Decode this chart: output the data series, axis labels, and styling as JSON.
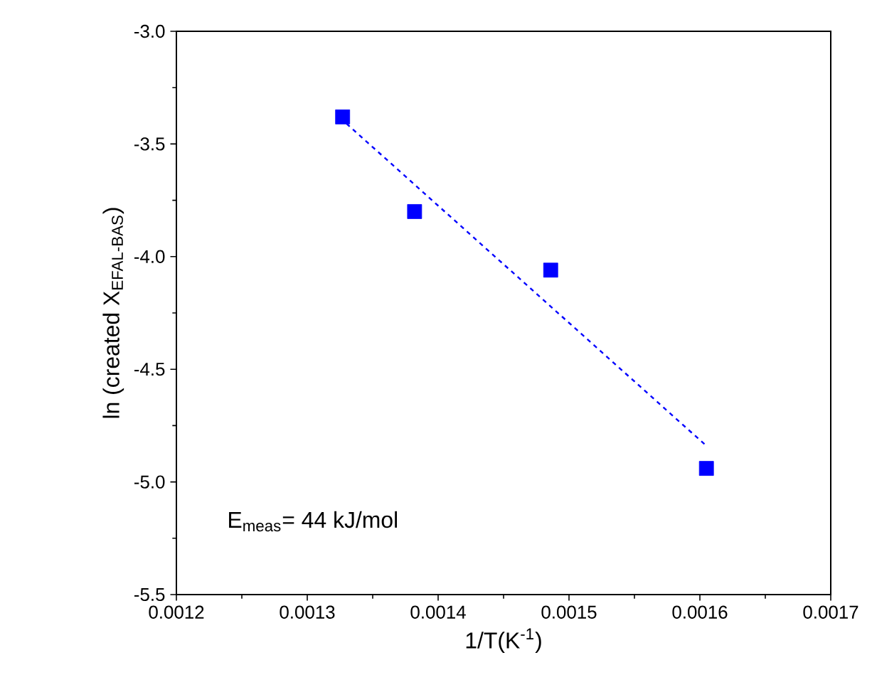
{
  "chart_data": {
    "type": "scatter",
    "xlabel": "1/T(K$^{-1}$)",
    "ylabel": "ln (created X$_{EFAL-BAS}$)",
    "annotations": [
      "E$_{meas}$= 44 kJ/mol"
    ],
    "xlim": [
      0.0012,
      0.0017
    ],
    "xticks": [
      0.0012,
      0.0013,
      0.0014,
      0.0015,
      0.0016,
      0.0017
    ],
    "ylim": [
      -5.5,
      -3.0
    ],
    "yticks": [
      {
        "value": -5.5,
        "label": "-5.5"
      },
      {
        "value": -5.0,
        "label": "-5.0"
      },
      {
        "value": -4.5,
        "label": "-4.5"
      },
      {
        "value": -4.0,
        "label": "-4.0"
      },
      {
        "value": -3.5,
        "label": "-3.5"
      },
      {
        "value": -3.0,
        "label": "-3.0"
      }
    ],
    "marker": "square",
    "grid": false,
    "series": [
      {
        "color": "#0000ff",
        "x": [
          0.001327,
          0.001382,
          0.001486,
          0.001605
        ],
        "values": [
          -3.38,
          -3.8,
          -4.06,
          -4.94
        ]
      },
      {
        "type": "line",
        "line_style": "dashed",
        "marker": "none",
        "color": "#0000ff",
        "x": [
          0.00133,
          0.001605
        ],
        "values": [
          -3.41,
          -4.84
        ]
      }
    ]
  }
}
